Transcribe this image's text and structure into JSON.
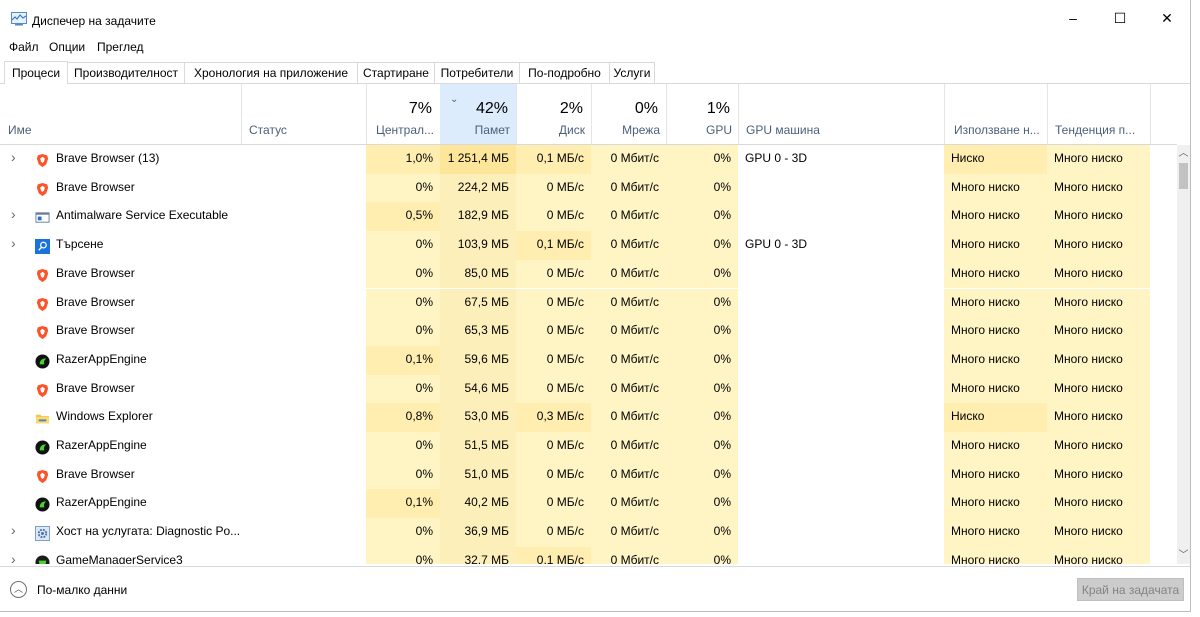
{
  "window": {
    "title": "Диспечер на задачите",
    "controls": {
      "minimize": "–",
      "maximize": "☐",
      "close": "✕"
    }
  },
  "menu": [
    "Файл",
    "Опции",
    "Преглед"
  ],
  "tabs": [
    "Процеси",
    "Производителност",
    "Хронология на приложение",
    "Стартиране",
    "Потребители",
    "По-подробно",
    "Услуги"
  ],
  "columns": {
    "name": "Име",
    "status": "Статус",
    "cpu": {
      "pct": "7%",
      "label": "Централ..."
    },
    "memory": {
      "pct": "42%",
      "label": "Памет"
    },
    "disk": {
      "pct": "2%",
      "label": "Диск"
    },
    "network": {
      "pct": "0%",
      "label": "Мрежа"
    },
    "gpu": {
      "pct": "1%",
      "label": "GPU"
    },
    "gpu_engine": "GPU машина",
    "power": "Използване н...",
    "power_trend": "Тенденция п..."
  },
  "rows": [
    {
      "expand": true,
      "icon": "brave-icon",
      "name": "Brave Browser (13)",
      "cpu": "1,0%",
      "mem": "1 251,4 МБ",
      "disk": "0,1 МБ/с",
      "net": "0 Мбит/с",
      "gpu": "0%",
      "engine": "GPU 0 - 3D",
      "power": "Ниско",
      "trend": "Много ниско"
    },
    {
      "expand": false,
      "icon": "brave-icon",
      "name": "Brave Browser",
      "cpu": "0%",
      "mem": "224,2 МБ",
      "disk": "0 МБ/с",
      "net": "0 Мбит/с",
      "gpu": "0%",
      "engine": "",
      "power": "Много ниско",
      "trend": "Много ниско"
    },
    {
      "expand": true,
      "icon": "antimalware-icon",
      "name": "Antimalware Service Executable",
      "cpu": "0,5%",
      "mem": "182,9 МБ",
      "disk": "0 МБ/с",
      "net": "0 Мбит/с",
      "gpu": "0%",
      "engine": "",
      "power": "Много ниско",
      "trend": "Много ниско"
    },
    {
      "expand": true,
      "icon": "search-icon",
      "name": "Търсене",
      "cpu": "0%",
      "mem": "103,9 МБ",
      "disk": "0,1 МБ/с",
      "net": "0 Мбит/с",
      "gpu": "0%",
      "engine": "GPU 0 - 3D",
      "power": "Много ниско",
      "trend": "Много ниско"
    },
    {
      "expand": false,
      "icon": "brave-icon",
      "name": "Brave Browser",
      "cpu": "0%",
      "mem": "85,0 МБ",
      "disk": "0 МБ/с",
      "net": "0 Мбит/с",
      "gpu": "0%",
      "engine": "",
      "power": "Много ниско",
      "trend": "Много ниско"
    },
    {
      "expand": false,
      "icon": "brave-icon",
      "name": "Brave Browser",
      "cpu": "0%",
      "mem": "67,5 МБ",
      "disk": "0 МБ/с",
      "net": "0 Мбит/с",
      "gpu": "0%",
      "engine": "",
      "power": "Много ниско",
      "trend": "Много ниско"
    },
    {
      "expand": false,
      "icon": "brave-icon",
      "name": "Brave Browser",
      "cpu": "0%",
      "mem": "65,3 МБ",
      "disk": "0 МБ/с",
      "net": "0 Мбит/с",
      "gpu": "0%",
      "engine": "",
      "power": "Много ниско",
      "trend": "Много ниско"
    },
    {
      "expand": false,
      "icon": "razer-icon",
      "name": "RazerAppEngine",
      "cpu": "0,1%",
      "mem": "59,6 МБ",
      "disk": "0 МБ/с",
      "net": "0 Мбит/с",
      "gpu": "0%",
      "engine": "",
      "power": "Много ниско",
      "trend": "Много ниско"
    },
    {
      "expand": false,
      "icon": "brave-icon",
      "name": "Brave Browser",
      "cpu": "0%",
      "mem": "54,6 МБ",
      "disk": "0 МБ/с",
      "net": "0 Мбит/с",
      "gpu": "0%",
      "engine": "",
      "power": "Много ниско",
      "trend": "Много ниско"
    },
    {
      "expand": false,
      "icon": "folder-icon",
      "name": "Windows Explorer",
      "cpu": "0,8%",
      "mem": "53,0 МБ",
      "disk": "0,3 МБ/с",
      "net": "0 Мбит/с",
      "gpu": "0%",
      "engine": "",
      "power": "Ниско",
      "trend": "Много ниско"
    },
    {
      "expand": false,
      "icon": "razer-icon",
      "name": "RazerAppEngine",
      "cpu": "0%",
      "mem": "51,5 МБ",
      "disk": "0 МБ/с",
      "net": "0 Мбит/с",
      "gpu": "0%",
      "engine": "",
      "power": "Много ниско",
      "trend": "Много ниско"
    },
    {
      "expand": false,
      "icon": "brave-icon",
      "name": "Brave Browser",
      "cpu": "0%",
      "mem": "51,0 МБ",
      "disk": "0 МБ/с",
      "net": "0 Мбит/с",
      "gpu": "0%",
      "engine": "",
      "power": "Много ниско",
      "trend": "Много ниско"
    },
    {
      "expand": false,
      "icon": "razer-icon",
      "name": "RazerAppEngine",
      "cpu": "0,1%",
      "mem": "40,2 МБ",
      "disk": "0 МБ/с",
      "net": "0 Мбит/с",
      "gpu": "0%",
      "engine": "",
      "power": "Много ниско",
      "trend": "Много ниско"
    },
    {
      "expand": true,
      "icon": "gear-icon",
      "name": "Хост на услугата: Diagnostic Po...",
      "cpu": "0%",
      "mem": "36,9 МБ",
      "disk": "0 МБ/с",
      "net": "0 Мбит/с",
      "gpu": "0%",
      "engine": "",
      "power": "Много ниско",
      "trend": "Много ниско"
    },
    {
      "expand": true,
      "icon": "gamemanager-icon",
      "name": "GameManagerService3",
      "cpu": "0%",
      "mem": "32,7 МБ",
      "disk": "0,1 МБ/с",
      "net": "0 Мбит/с",
      "gpu": "0%",
      "engine": "",
      "power": "Много ниско",
      "trend": "Много ниско"
    }
  ],
  "footer": {
    "fewer_details": "По-малко данни",
    "end_task": "Край на задачата"
  },
  "colors": {
    "heat_light": "#fff4c4",
    "heat_mid": "#ffe8a6",
    "memory_col": "#fdeaa0",
    "sorted_header": "#dcecfc",
    "label": "#4c607a"
  }
}
